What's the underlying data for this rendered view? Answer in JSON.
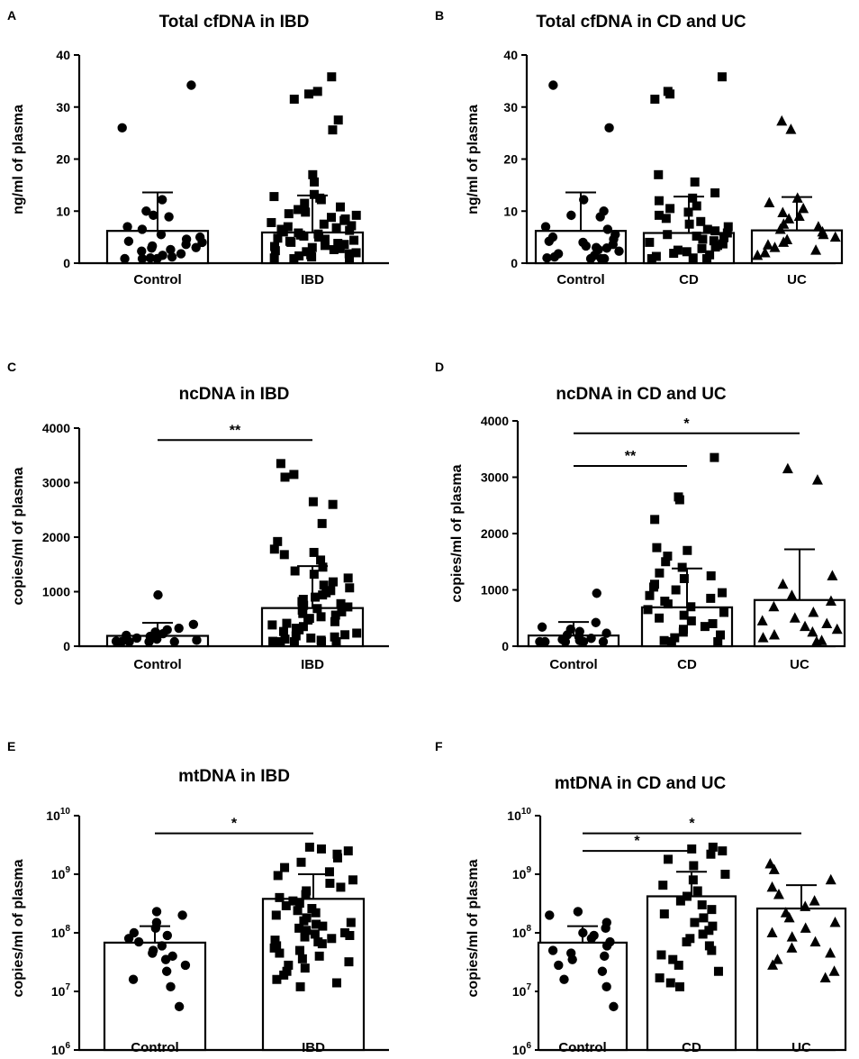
{
  "chart_data": [
    {
      "id": "A",
      "panel_label": "A",
      "type": "bar",
      "title": "Total cfDNA in IBD",
      "ylabel": "ng/ml of plasma",
      "scale": "linear",
      "ylim": [
        0,
        40
      ],
      "yticks": [
        0,
        10,
        20,
        30,
        40
      ],
      "categories": [
        "Control",
        "IBD"
      ],
      "series": [
        {
          "name": "Control",
          "marker": "circle",
          "mean": 6.2,
          "sd_upper": 13.6,
          "points": [
            34.2,
            26,
            12.2,
            10,
            9.2,
            8.9,
            7,
            6.5,
            5.5,
            5,
            4.6,
            4.2,
            4,
            3.6,
            3.3,
            3,
            2.9,
            2.6,
            2.3,
            1.8,
            1.5,
            1.2,
            1,
            0.8,
            0.5,
            0.3
          ]
        },
        {
          "name": "IBD",
          "marker": "square",
          "mean": 5.9,
          "sd_upper": 13,
          "points": [
            35.8,
            33,
            32.5,
            31.5,
            27.5,
            25.6,
            17,
            15.6,
            13.2,
            12.8,
            12.5,
            12.2,
            11.5,
            10.8,
            10.3,
            9.8,
            9.5,
            9.2,
            8.8,
            8.5,
            8.2,
            7.8,
            7.5,
            7.2,
            7,
            6.8,
            6.5,
            6.3,
            6,
            5.8,
            5.6,
            5.4,
            5.2,
            5,
            4.8,
            4.6,
            4.4,
            4.2,
            4,
            3.8,
            3.6,
            3.4,
            3.2,
            3,
            2.8,
            2.6,
            2.4,
            2.2,
            2,
            1.8,
            1.6,
            1.4,
            1.2,
            1,
            0.8,
            0.6
          ]
        }
      ],
      "significance": []
    },
    {
      "id": "B",
      "panel_label": "B",
      "type": "bar",
      "title": "Total cfDNA in CD and UC",
      "ylabel": "ng/ml of plasma",
      "scale": "linear",
      "ylim": [
        0,
        40
      ],
      "yticks": [
        0,
        10,
        20,
        30,
        40
      ],
      "categories": [
        "Control",
        "CD",
        "UC"
      ],
      "series": [
        {
          "name": "Control",
          "marker": "circle",
          "mean": 6.2,
          "sd_upper": 13.6,
          "points": [
            34.2,
            26,
            12.2,
            10,
            9.2,
            8.9,
            7,
            6.5,
            5.5,
            5,
            4.6,
            4.2,
            4,
            3.6,
            3.3,
            3,
            2.9,
            2.6,
            2.3,
            1.8,
            1.5,
            1.2,
            1,
            0.8,
            0.5,
            0.3
          ]
        },
        {
          "name": "CD",
          "marker": "square",
          "mean": 5.8,
          "sd_upper": 12.8,
          "points": [
            35.8,
            33,
            32.5,
            31.5,
            17,
            15.6,
            13.5,
            12.5,
            12,
            11,
            10.5,
            9.8,
            9.2,
            8.6,
            8,
            7.5,
            7,
            6.5,
            6.2,
            5.8,
            5.5,
            5.2,
            4.9,
            4.6,
            4.3,
            4,
            3.7,
            3.4,
            3.1,
            2.8,
            2.5,
            2.2,
            1.9,
            1.6,
            1.3,
            1,
            0.7,
            0.5
          ]
        },
        {
          "name": "UC",
          "marker": "triangle",
          "mean": 6.3,
          "sd_upper": 12.7,
          "points": [
            27.3,
            25.7,
            12.5,
            11.6,
            10.5,
            9.7,
            9,
            8.5,
            7.5,
            7,
            6.5,
            6,
            5.5,
            5,
            4.5,
            4,
            3.5,
            3,
            2.5,
            2,
            1.5
          ]
        }
      ],
      "significance": []
    },
    {
      "id": "C",
      "panel_label": "C",
      "type": "bar",
      "title": "ncDNA in IBD",
      "ylabel": "copies/ml of plasma",
      "scale": "linear",
      "ylim": [
        0,
        4000
      ],
      "yticks": [
        0,
        1000,
        2000,
        3000,
        4000
      ],
      "categories": [
        "Control",
        "IBD"
      ],
      "series": [
        {
          "name": "Control",
          "marker": "circle",
          "mean": 190,
          "sd_upper": 430,
          "points": [
            940,
            400,
            330,
            300,
            260,
            230,
            200,
            180,
            150,
            130,
            110,
            90,
            70,
            50,
            30,
            15,
            5
          ]
        },
        {
          "name": "IBD",
          "marker": "square",
          "mean": 700,
          "sd_upper": 1470,
          "points": [
            3350,
            3150,
            3100,
            2650,
            2600,
            2250,
            1920,
            1780,
            1720,
            1680,
            1580,
            1450,
            1380,
            1320,
            1250,
            1180,
            1120,
            1070,
            1020,
            980,
            940,
            900,
            860,
            820,
            780,
            750,
            720,
            690,
            660,
            630,
            600,
            570,
            540,
            510,
            480,
            450,
            420,
            390,
            360,
            330,
            300,
            270,
            240,
            210,
            190,
            170,
            150,
            130,
            110,
            90,
            70,
            50,
            30,
            15
          ]
        }
      ],
      "significance": [
        {
          "from": 0,
          "to": 1,
          "level": 3780,
          "label": "**"
        }
      ]
    },
    {
      "id": "D",
      "panel_label": "D",
      "type": "bar",
      "title": "ncDNA in CD and UC",
      "ylabel": "copies/ml of plasma",
      "scale": "linear",
      "ylim": [
        0,
        4000
      ],
      "yticks": [
        0,
        1000,
        2000,
        3000,
        4000
      ],
      "categories": [
        "Control",
        "CD",
        "UC"
      ],
      "series": [
        {
          "name": "Control",
          "marker": "circle",
          "mean": 190,
          "sd_upper": 430,
          "points": [
            940,
            420,
            340,
            300,
            260,
            230,
            200,
            170,
            140,
            120,
            100,
            80,
            60,
            40,
            20,
            8
          ]
        },
        {
          "name": "CD",
          "marker": "square",
          "mean": 690,
          "sd_upper": 1380,
          "points": [
            3350,
            2650,
            2600,
            2250,
            1750,
            1700,
            1600,
            1500,
            1400,
            1300,
            1250,
            1200,
            1100,
            1050,
            1000,
            950,
            900,
            850,
            800,
            750,
            700,
            650,
            600,
            550,
            500,
            450,
            400,
            350,
            300,
            250,
            200,
            150,
            100,
            60,
            30
          ]
        },
        {
          "name": "UC",
          "marker": "triangle",
          "mean": 820,
          "sd_upper": 1720,
          "points": [
            3150,
            2950,
            1250,
            1100,
            900,
            800,
            700,
            600,
            500,
            450,
            400,
            350,
            300,
            250,
            200,
            150,
            100,
            30
          ]
        }
      ],
      "significance": [
        {
          "from": 0,
          "to": 1,
          "level": 3200,
          "label": "**"
        },
        {
          "from": 0,
          "to": 2,
          "level": 3780,
          "label": "*"
        }
      ]
    },
    {
      "id": "E",
      "panel_label": "E",
      "type": "bar",
      "title": "mtDNA in IBD",
      "ylabel": "copies/ml of plasma",
      "scale": "log",
      "ylim": [
        1000000,
        10000000000
      ],
      "yticks": [
        1000000,
        10000000,
        100000000,
        1000000000,
        10000000000
      ],
      "ytick_labels": [
        "10^6",
        "10^7",
        "10^8",
        "10^9",
        "10^10"
      ],
      "categories": [
        "Control",
        "IBD"
      ],
      "series": [
        {
          "name": "Control",
          "marker": "circle",
          "mean": 68000000,
          "sd_upper": 130000000,
          "points": [
            230000000,
            200000000,
            150000000,
            120000000,
            100000000,
            90000000,
            80000000,
            70000000,
            60000000,
            50000000,
            45000000,
            40000000,
            35000000,
            28000000,
            22000000,
            16000000,
            12000000,
            5500000
          ]
        },
        {
          "name": "IBD",
          "marker": "square",
          "mean": 380000000,
          "sd_upper": 1000000000,
          "points": [
            2900000000,
            2700000000,
            2500000000,
            2200000000,
            1900000000,
            1600000000,
            1300000000,
            1100000000,
            950000000,
            800000000,
            700000000,
            600000000,
            520000000,
            450000000,
            400000000,
            350000000,
            320000000,
            290000000,
            260000000,
            240000000,
            220000000,
            200000000,
            180000000,
            160000000,
            150000000,
            140000000,
            130000000,
            120000000,
            110000000,
            100000000,
            95000000,
            90000000,
            85000000,
            80000000,
            75000000,
            70000000,
            65000000,
            60000000,
            55000000,
            50000000,
            45000000,
            40000000,
            36000000,
            32000000,
            28000000,
            25000000,
            22000000,
            19000000,
            16000000,
            14000000,
            12000000
          ]
        }
      ],
      "significance": [
        {
          "from": 0,
          "to": 1,
          "level": 5000000000,
          "label": "*"
        }
      ]
    },
    {
      "id": "F",
      "panel_label": "F",
      "type": "bar",
      "title": "mtDNA in CD and UC",
      "ylabel": "copies/ml of plasma",
      "scale": "log",
      "ylim": [
        1000000,
        10000000000
      ],
      "yticks": [
        1000000,
        10000000,
        100000000,
        1000000000,
        10000000000
      ],
      "ytick_labels": [
        "10^6",
        "10^7",
        "10^8",
        "10^9",
        "10^10"
      ],
      "categories": [
        "Control",
        "CD",
        "UC"
      ],
      "series": [
        {
          "name": "Control",
          "marker": "circle",
          "mean": 68000000,
          "sd_upper": 130000000,
          "points": [
            230000000,
            200000000,
            150000000,
            120000000,
            100000000,
            90000000,
            80000000,
            70000000,
            60000000,
            50000000,
            45000000,
            40000000,
            35000000,
            28000000,
            22000000,
            16000000,
            12000000,
            5500000
          ]
        },
        {
          "name": "CD",
          "marker": "square",
          "mean": 420000000,
          "sd_upper": 1100000000,
          "points": [
            2900000000,
            2700000000,
            2500000000,
            2200000000,
            1800000000,
            1400000000,
            1000000000,
            800000000,
            650000000,
            520000000,
            420000000,
            350000000,
            300000000,
            250000000,
            210000000,
            180000000,
            150000000,
            130000000,
            110000000,
            95000000,
            80000000,
            70000000,
            60000000,
            50000000,
            42000000,
            35000000,
            28000000,
            22000000,
            17000000,
            14000000,
            12000000
          ]
        },
        {
          "name": "UC",
          "marker": "triangle",
          "mean": 260000000,
          "sd_upper": 650000000,
          "points": [
            1500000000,
            1200000000,
            800000000,
            600000000,
            450000000,
            350000000,
            280000000,
            220000000,
            180000000,
            150000000,
            120000000,
            100000000,
            85000000,
            70000000,
            55000000,
            45000000,
            35000000,
            28000000,
            22000000,
            17000000
          ]
        }
      ],
      "significance": [
        {
          "from": 0,
          "to": 1,
          "level": 2500000000,
          "label": "*"
        },
        {
          "from": 0,
          "to": 2,
          "level": 5000000000,
          "label": "*"
        }
      ]
    }
  ]
}
